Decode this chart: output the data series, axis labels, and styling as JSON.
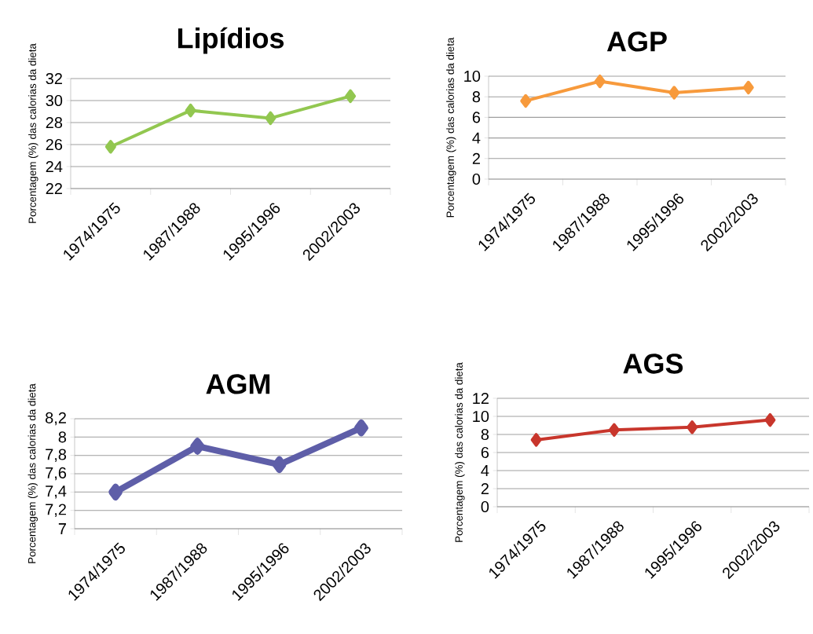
{
  "chart_data": [
    {
      "type": "line",
      "title": "Lipídios",
      "ylabel": "Porcentagem (%) das calorias da dieta",
      "categories": [
        "1974/1975",
        "1987/1988",
        "1995/1996",
        "2002/2003"
      ],
      "series": [
        {
          "color": "#92c750",
          "values": [
            25.8,
            29.1,
            28.4,
            30.4
          ]
        }
      ],
      "ylim": [
        22,
        32
      ],
      "yticks": [
        22,
        24,
        26,
        28,
        30,
        32
      ],
      "grid": "y",
      "marker": "diamond"
    },
    {
      "type": "line",
      "title": "AGP",
      "ylabel": "Porcentagem (%) das calorias da dieta",
      "categories": [
        "1974/1975",
        "1987/1988",
        "1995/1996",
        "2002/2003"
      ],
      "series": [
        {
          "color": "#f79a3c",
          "values": [
            7.6,
            9.5,
            8.4,
            8.9
          ]
        }
      ],
      "ylim": [
        0,
        10
      ],
      "yticks": [
        0,
        2,
        4,
        6,
        8,
        10
      ],
      "grid": "y",
      "marker": "diamond"
    },
    {
      "type": "line",
      "title": "AGM",
      "ylabel": "Porcentagem (%) das calorias da dieta",
      "categories": [
        "1974/1975",
        "1987/1988",
        "1995/1996",
        "2002/2003"
      ],
      "series": [
        {
          "color": "#5e5ea8",
          "values": [
            7.4,
            7.9,
            7.7,
            8.1
          ]
        }
      ],
      "ylim": [
        7,
        8.2
      ],
      "yticks": [
        7,
        {
          "value": 7.2,
          "label": "7,2"
        },
        {
          "value": 7.4,
          "label": "7,4"
        },
        {
          "value": 7.6,
          "label": "7,6"
        },
        {
          "value": 7.8,
          "label": "7,8"
        },
        8,
        {
          "value": 8.2,
          "label": "8,2"
        }
      ],
      "grid": "y",
      "marker": "diamond"
    },
    {
      "type": "line",
      "title": "AGS",
      "ylabel": "Porcentagem (%) das calorias da dieta",
      "categories": [
        "1974/1975",
        "1987/1988",
        "1995/1996",
        "2002/2003"
      ],
      "series": [
        {
          "color": "#c8362c",
          "values": [
            7.4,
            8.5,
            8.8,
            9.6
          ]
        }
      ],
      "ylim": [
        0,
        12
      ],
      "yticks": [
        0,
        2,
        4,
        6,
        8,
        10,
        12
      ],
      "grid": "y",
      "marker": "diamond"
    }
  ]
}
